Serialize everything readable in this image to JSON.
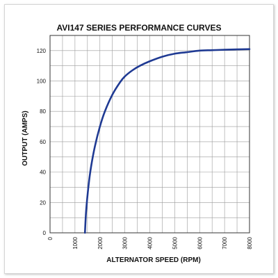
{
  "chart_data": {
    "type": "line",
    "title": "AVI147 SERIES PERFORMANCE CURVES",
    "xlabel": "ALTERNATOR SPEED (RPM)",
    "ylabel": "OUTPUT (AMPS)",
    "xlim": [
      0,
      8000
    ],
    "ylim": [
      0,
      130
    ],
    "x_ticks": [
      "0",
      "1000",
      "2000",
      "3000",
      "4000",
      "5000",
      "6000",
      "7000",
      "8000"
    ],
    "y_ticks": [
      "0",
      "20",
      "40",
      "60",
      "80",
      "100",
      "120"
    ],
    "grid": true,
    "x_minor_step": 500,
    "y_minor_step": 10,
    "line_color": "#1f3a93",
    "series": [
      {
        "x": [
          1400,
          1450,
          1550,
          1650,
          1800,
          2000,
          2200,
          2500,
          2800,
          3000,
          3300,
          3600,
          4000,
          4500,
          5000,
          5500,
          6000,
          6500,
          7000,
          7500,
          8000
        ],
        "y": [
          0,
          15,
          32,
          44,
          57,
          70,
          80,
          91,
          99,
          103,
          107,
          110,
          113,
          116,
          118,
          119,
          120,
          120.3,
          120.6,
          120.8,
          121
        ]
      }
    ]
  }
}
